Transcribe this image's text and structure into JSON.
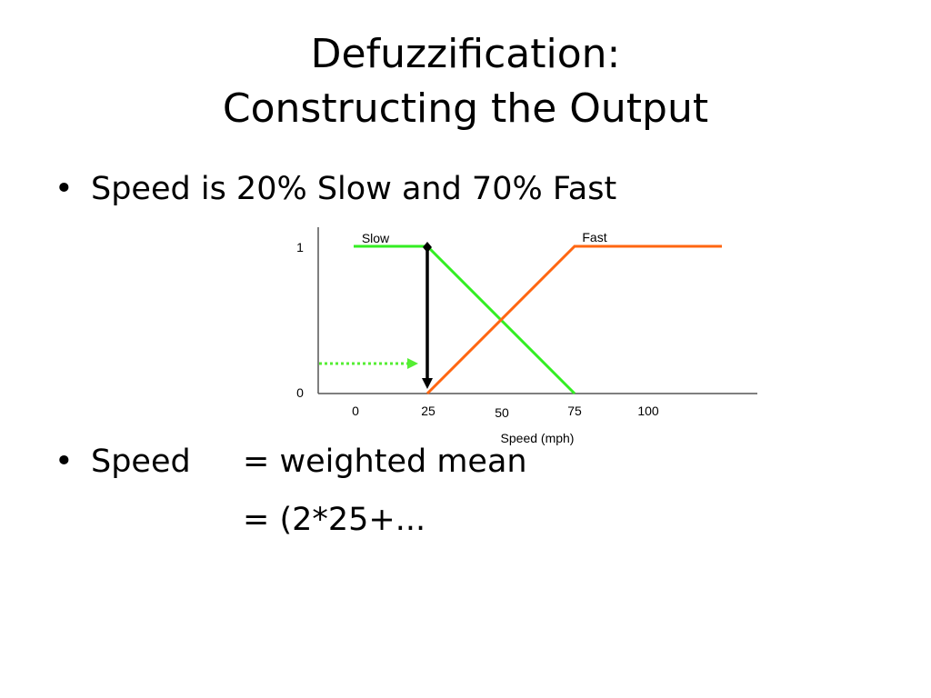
{
  "title": {
    "line1": "Defuzzification:",
    "line2": "Constructing the Output"
  },
  "bullets": [
    {
      "marker": "•",
      "text": "Speed is 20% Slow and 70% Fast"
    },
    {
      "marker": "•",
      "text": "Speed"
    }
  ],
  "equation": {
    "line1": "= weighted mean",
    "line2": "= (2*25+..."
  },
  "diagram": {
    "y_ticks": [
      "1",
      "0"
    ],
    "x_ticks": [
      "0",
      "25",
      "50",
      "75",
      "100"
    ],
    "xlabel": "Speed (mph)",
    "set_labels": {
      "slow": "Slow",
      "fast": "Fast"
    },
    "colors": {
      "slow": "#33ee22",
      "fast": "#ff6611",
      "arrow": "#000000",
      "dotted_arrow": "#55ee33"
    }
  }
}
